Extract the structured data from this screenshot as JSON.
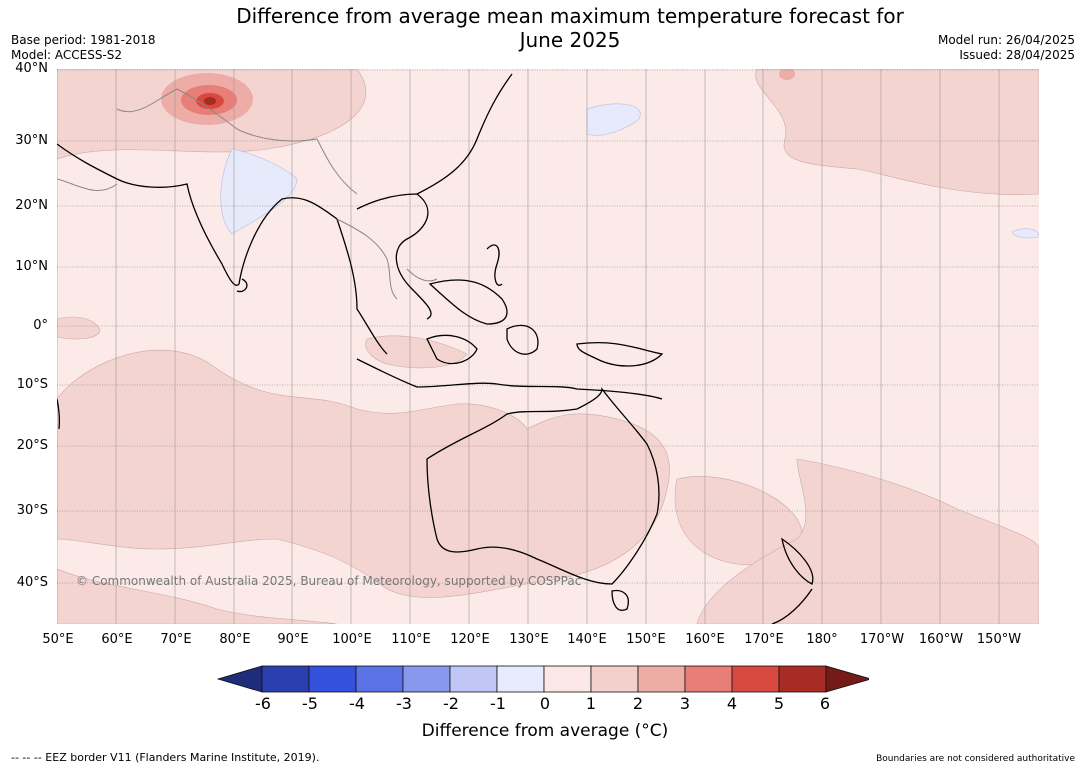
{
  "title_line1": "Difference from average mean maximum temperature forecast for",
  "title_line2": "June 2025",
  "meta_left": [
    "Base period: 1981-2018",
    "Model: ACCESS-S2"
  ],
  "meta_right": [
    "Model run: 26/04/2025",
    "Issued: 28/04/2025"
  ],
  "copyright": "© Commonwealth of Australia 2025, Bureau of Meteorology, supported by COSPPac",
  "lat_labels": [
    "40°N",
    "30°N",
    "20°N",
    "10°N",
    "0°",
    "10°S",
    "20°S",
    "30°S",
    "40°S"
  ],
  "lon_labels": [
    "50°E",
    "60°E",
    "70°E",
    "80°E",
    "90°E",
    "100°E",
    "110°E",
    "120°E",
    "130°E",
    "140°E",
    "150°E",
    "160°E",
    "170°E",
    "180°",
    "170°W",
    "160°W",
    "150°W"
  ],
  "colorbar": {
    "ticks": [
      "-6",
      "-5",
      "-4",
      "-3",
      "-2",
      "-1",
      "0",
      "1",
      "2",
      "3",
      "4",
      "5",
      "6"
    ],
    "colors": [
      "#1f2c7a",
      "#2a3fb0",
      "#3451dd",
      "#5a72e6",
      "#8898ec",
      "#bfc6f5",
      "#e8ebfb",
      "#fbe8e6",
      "#f4d0cd",
      "#eeaca7",
      "#e77f78",
      "#d84a40",
      "#a82b24",
      "#741b17"
    ],
    "label": "Difference from average (°C)"
  },
  "footer_left": "--  --  -- EEZ border V11 (Flanders Marine Institute, 2019).",
  "footer_right": "Boundaries are not considered authoritative"
}
